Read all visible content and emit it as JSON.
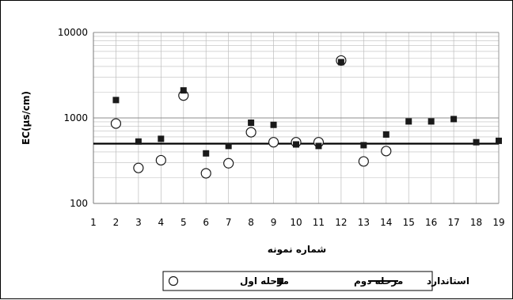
{
  "chart_data": {
    "type": "scatter",
    "xlabel": "شماره نمونه",
    "ylabel": "EC(µs/cm)",
    "x_ticks": [
      "1",
      "2",
      "3",
      "4",
      "5",
      "6",
      "7",
      "8",
      "9",
      "10",
      "11",
      "12",
      "13",
      "14",
      "15",
      "16",
      "17",
      "18",
      "19"
    ],
    "y_ticks": [
      "100",
      "1000",
      "10000"
    ],
    "xlim": [
      1,
      19
    ],
    "ylim": [
      100,
      10000
    ],
    "y_scale": "log",
    "grid": true,
    "legend_position": "bottom",
    "series": [
      {
        "name": "مرحله اول",
        "marker": "open-circle",
        "x": [
          2,
          3,
          4,
          5,
          6,
          7,
          8,
          9,
          10,
          11,
          12,
          13,
          14
        ],
        "y": [
          860,
          260,
          320,
          1830,
          225,
          295,
          680,
          520,
          520,
          520,
          4700,
          310,
          410
        ]
      },
      {
        "name": "مرحله دوم",
        "marker": "filled-square",
        "x": [
          2,
          3,
          4,
          5,
          6,
          7,
          8,
          9,
          10,
          11,
          12,
          13,
          14,
          15,
          16,
          17,
          18,
          19
        ],
        "y": [
          1620,
          530,
          570,
          2100,
          385,
          470,
          880,
          830,
          490,
          470,
          4500,
          480,
          640,
          910,
          910,
          970,
          520,
          540
        ]
      },
      {
        "name": "استاندارد",
        "marker": "line",
        "value": 500
      }
    ],
    "colors": {
      "marker": "#1a1a1a",
      "grid": "#bdbdbd",
      "axis": "#7a7a7a"
    }
  }
}
